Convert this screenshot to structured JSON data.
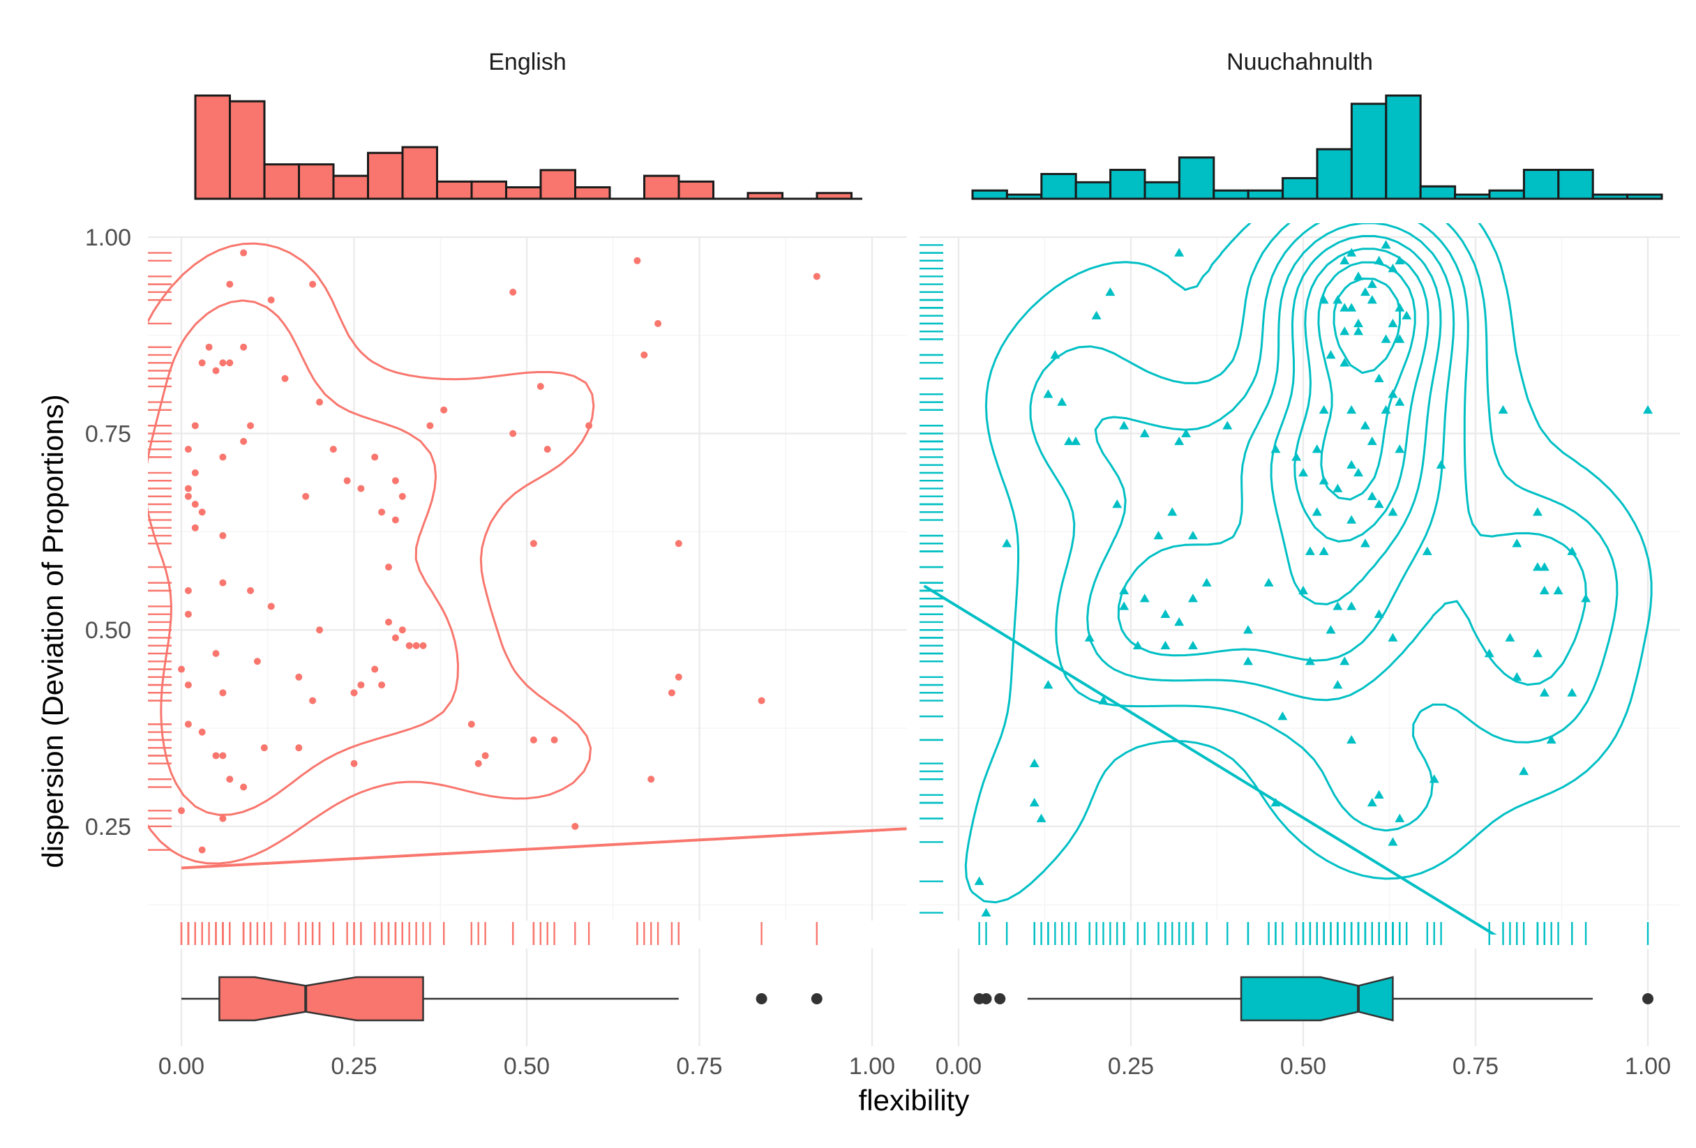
{
  "chart_data": {
    "type": "scatter",
    "facets": [
      "English",
      "Nuuchahnulth"
    ],
    "xlabel": "flexibility",
    "ylabel": "dispersion (Deviation of Proportions)",
    "xlim": [
      0,
      1
    ],
    "ylim": [
      0.13,
      1.0
    ],
    "x_ticks": [
      0,
      0.25,
      0.5,
      0.75,
      1.0
    ],
    "x_tick_labels": [
      "0.00",
      "0.25",
      "0.50",
      "0.75",
      "1.00"
    ],
    "y_ticks": [
      0.25,
      0.5,
      0.75,
      1.0
    ],
    "y_tick_labels": [
      "0.25",
      "0.50",
      "0.75",
      "1.00"
    ],
    "grid": true,
    "colors": {
      "English": "#F8766D",
      "Nuuchahnulth": "#00BFC4",
      "outlier": "#333333"
    },
    "panels": [
      {
        "name": "English",
        "marker": "circle",
        "points": [
          [
            0.09,
            0.98
          ],
          [
            0.92,
            0.95
          ],
          [
            0.66,
            0.97
          ],
          [
            0.07,
            0.94
          ],
          [
            0.13,
            0.92
          ],
          [
            0.19,
            0.94
          ],
          [
            0.48,
            0.93
          ],
          [
            0.69,
            0.89
          ],
          [
            0.04,
            0.86
          ],
          [
            0.09,
            0.86
          ],
          [
            0.06,
            0.84
          ],
          [
            0.03,
            0.84
          ],
          [
            0.07,
            0.84
          ],
          [
            0.05,
            0.83
          ],
          [
            0.15,
            0.82
          ],
          [
            0.67,
            0.85
          ],
          [
            0.52,
            0.81
          ],
          [
            0.2,
            0.79
          ],
          [
            0.38,
            0.78
          ],
          [
            0.36,
            0.76
          ],
          [
            0.02,
            0.76
          ],
          [
            0.1,
            0.76
          ],
          [
            0.09,
            0.74
          ],
          [
            0.48,
            0.75
          ],
          [
            0.59,
            0.76
          ],
          [
            0.53,
            0.73
          ],
          [
            0.01,
            0.73
          ],
          [
            0.06,
            0.72
          ],
          [
            0.22,
            0.73
          ],
          [
            0.28,
            0.72
          ],
          [
            0.02,
            0.7
          ],
          [
            0.24,
            0.69
          ],
          [
            0.31,
            0.69
          ],
          [
            0.26,
            0.68
          ],
          [
            0.01,
            0.68
          ],
          [
            0.02,
            0.66
          ],
          [
            0.01,
            0.67
          ],
          [
            0.18,
            0.67
          ],
          [
            0.32,
            0.67
          ],
          [
            0.29,
            0.65
          ],
          [
            0.31,
            0.64
          ],
          [
            0.03,
            0.65
          ],
          [
            0.02,
            0.63
          ],
          [
            0.06,
            0.62
          ],
          [
            0.72,
            0.61
          ],
          [
            0.51,
            0.61
          ],
          [
            0.3,
            0.58
          ],
          [
            0.06,
            0.56
          ],
          [
            0.1,
            0.55
          ],
          [
            0.01,
            0.55
          ],
          [
            0.01,
            0.52
          ],
          [
            0.13,
            0.53
          ],
          [
            0.3,
            0.51
          ],
          [
            0.2,
            0.5
          ],
          [
            0.32,
            0.5
          ],
          [
            0.05,
            0.47
          ],
          [
            0.31,
            0.49
          ],
          [
            0.33,
            0.48
          ],
          [
            0.35,
            0.48
          ],
          [
            0.34,
            0.48
          ],
          [
            0.28,
            0.45
          ],
          [
            0.11,
            0.46
          ],
          [
            0.29,
            0.43
          ],
          [
            0.0,
            0.45
          ],
          [
            0.01,
            0.43
          ],
          [
            0.17,
            0.44
          ],
          [
            0.26,
            0.43
          ],
          [
            0.72,
            0.44
          ],
          [
            0.71,
            0.42
          ],
          [
            0.25,
            0.42
          ],
          [
            0.06,
            0.42
          ],
          [
            0.84,
            0.41
          ],
          [
            0.19,
            0.41
          ],
          [
            0.42,
            0.38
          ],
          [
            0.01,
            0.38
          ],
          [
            0.03,
            0.37
          ],
          [
            0.51,
            0.36
          ],
          [
            0.54,
            0.36
          ],
          [
            0.17,
            0.35
          ],
          [
            0.12,
            0.35
          ],
          [
            0.05,
            0.34
          ],
          [
            0.06,
            0.34
          ],
          [
            0.44,
            0.34
          ],
          [
            0.43,
            0.33
          ],
          [
            0.25,
            0.33
          ],
          [
            0.07,
            0.31
          ],
          [
            0.68,
            0.31
          ],
          [
            0.09,
            0.3
          ],
          [
            0.0,
            0.27
          ],
          [
            0.06,
            0.26
          ],
          [
            0.57,
            0.25
          ],
          [
            0.03,
            0.22
          ]
        ],
        "regression_line": {
          "x": [
            0,
            1.05
          ],
          "y": [
            0.197,
            0.247
          ]
        },
        "contour_levels": 2,
        "boxplot": {
          "min": 0.0,
          "q1": 0.055,
          "median": 0.18,
          "q3": 0.35,
          "max": 0.72,
          "outliers": [
            0.84,
            0.92
          ]
        }
      },
      {
        "name": "Nuuchahnulth",
        "marker": "triangle",
        "points": [
          [
            0.32,
            0.98
          ],
          [
            0.22,
            0.93
          ],
          [
            0.2,
            0.9
          ],
          [
            0.14,
            0.85
          ],
          [
            0.57,
            0.98
          ],
          [
            0.62,
            0.99
          ],
          [
            0.56,
            0.97
          ],
          [
            0.64,
            0.97
          ],
          [
            0.61,
            0.97
          ],
          [
            0.58,
            0.95
          ],
          [
            0.63,
            0.96
          ],
          [
            0.6,
            0.94
          ],
          [
            0.59,
            0.93
          ],
          [
            0.6,
            0.92
          ],
          [
            0.53,
            0.92
          ],
          [
            0.55,
            0.92
          ],
          [
            0.56,
            0.91
          ],
          [
            0.57,
            0.91
          ],
          [
            0.64,
            0.91
          ],
          [
            0.65,
            0.9
          ],
          [
            0.63,
            0.89
          ],
          [
            0.58,
            0.89
          ],
          [
            0.58,
            0.88
          ],
          [
            0.56,
            0.88
          ],
          [
            0.62,
            0.87
          ],
          [
            0.64,
            0.87
          ],
          [
            0.54,
            0.85
          ],
          [
            0.56,
            0.84
          ],
          [
            0.61,
            0.82
          ],
          [
            0.63,
            0.8
          ],
          [
            0.64,
            0.79
          ],
          [
            0.53,
            0.78
          ],
          [
            0.57,
            0.78
          ],
          [
            0.62,
            0.78
          ],
          [
            0.59,
            0.76
          ],
          [
            0.6,
            0.74
          ],
          [
            0.64,
            0.73
          ],
          [
            0.52,
            0.73
          ],
          [
            0.46,
            0.73
          ],
          [
            0.49,
            0.72
          ],
          [
            0.33,
            0.75
          ],
          [
            0.32,
            0.74
          ],
          [
            0.39,
            0.76
          ],
          [
            0.24,
            0.76
          ],
          [
            0.27,
            0.75
          ],
          [
            0.16,
            0.74
          ],
          [
            0.17,
            0.74
          ],
          [
            0.13,
            0.8
          ],
          [
            0.15,
            0.79
          ],
          [
            0.79,
            0.78
          ],
          [
            1.0,
            0.78
          ],
          [
            0.7,
            0.71
          ],
          [
            0.57,
            0.71
          ],
          [
            0.58,
            0.7
          ],
          [
            0.5,
            0.7
          ],
          [
            0.53,
            0.69
          ],
          [
            0.55,
            0.68
          ],
          [
            0.6,
            0.67
          ],
          [
            0.61,
            0.66
          ],
          [
            0.63,
            0.65
          ],
          [
            0.52,
            0.65
          ],
          [
            0.57,
            0.64
          ],
          [
            0.31,
            0.65
          ],
          [
            0.23,
            0.66
          ],
          [
            0.34,
            0.62
          ],
          [
            0.29,
            0.62
          ],
          [
            0.51,
            0.6
          ],
          [
            0.53,
            0.6
          ],
          [
            0.59,
            0.61
          ],
          [
            0.68,
            0.6
          ],
          [
            0.85,
            0.58
          ],
          [
            0.84,
            0.58
          ],
          [
            0.85,
            0.55
          ],
          [
            0.87,
            0.55
          ],
          [
            0.91,
            0.54
          ],
          [
            0.81,
            0.61
          ],
          [
            0.84,
            0.65
          ],
          [
            0.89,
            0.6
          ],
          [
            0.07,
            0.61
          ],
          [
            0.24,
            0.55
          ],
          [
            0.27,
            0.54
          ],
          [
            0.34,
            0.54
          ],
          [
            0.36,
            0.56
          ],
          [
            0.45,
            0.56
          ],
          [
            0.5,
            0.55
          ],
          [
            0.55,
            0.53
          ],
          [
            0.57,
            0.53
          ],
          [
            0.61,
            0.52
          ],
          [
            0.24,
            0.53
          ],
          [
            0.3,
            0.52
          ],
          [
            0.32,
            0.51
          ],
          [
            0.42,
            0.5
          ],
          [
            0.54,
            0.5
          ],
          [
            0.63,
            0.49
          ],
          [
            0.19,
            0.49
          ],
          [
            0.26,
            0.48
          ],
          [
            0.3,
            0.48
          ],
          [
            0.34,
            0.48
          ],
          [
            0.77,
            0.47
          ],
          [
            0.8,
            0.49
          ],
          [
            0.84,
            0.47
          ],
          [
            0.42,
            0.46
          ],
          [
            0.51,
            0.46
          ],
          [
            0.56,
            0.46
          ],
          [
            0.81,
            0.44
          ],
          [
            0.85,
            0.42
          ],
          [
            0.89,
            0.42
          ],
          [
            0.55,
            0.43
          ],
          [
            0.13,
            0.43
          ],
          [
            0.21,
            0.41
          ],
          [
            0.47,
            0.39
          ],
          [
            0.57,
            0.36
          ],
          [
            0.86,
            0.36
          ],
          [
            0.82,
            0.32
          ],
          [
            0.11,
            0.33
          ],
          [
            0.69,
            0.31
          ],
          [
            0.6,
            0.28
          ],
          [
            0.61,
            0.29
          ],
          [
            0.64,
            0.26
          ],
          [
            0.11,
            0.28
          ],
          [
            0.12,
            0.26
          ],
          [
            0.46,
            0.28
          ],
          [
            0.63,
            0.23
          ],
          [
            0.03,
            0.18
          ],
          [
            0.04,
            0.14
          ]
        ],
        "regression_line": {
          "x": [
            -0.05,
            0.8
          ],
          "y": [
            0.556,
            0.1
          ]
        },
        "contour_levels": 8,
        "boxplot": {
          "min": 0.1,
          "q1": 0.41,
          "median": 0.58,
          "q3": 0.63,
          "max": 0.92,
          "outliers": [
            0.03,
            0.04,
            0.06,
            1.0
          ]
        }
      }
    ]
  }
}
